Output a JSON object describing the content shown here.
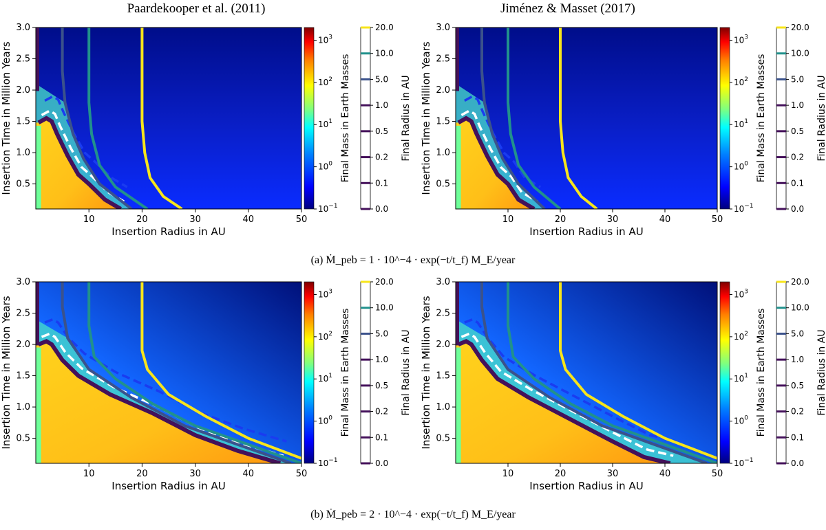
{
  "figure": {
    "column_titles": [
      "Paardekooper et al. (2011)",
      "Jiménez & Masset (2017)"
    ],
    "captions": [
      {
        "label": "(a)",
        "text": "Ṁ_peb = 1 · 10^−4 · exp(−t/t_f) M_E/year"
      },
      {
        "label": "(b)",
        "text": "Ṁ_peb = 2 · 10^−4 · exp(−t/t_f) M_E/year"
      }
    ],
    "colors": {
      "contour_20": "#f7e51b",
      "contour_10": "#21918c",
      "contour_5": "#3b528b",
      "contour_low": "#44115a",
      "dashed_blue": "#1a3cf0",
      "dashed_white": "#ffffff"
    }
  },
  "chart_data": [
    {
      "type": "heatmap",
      "panel": "(a) left",
      "model": "Paardekooper et al. (2011)",
      "xlabel": "Insertion Radius in AU",
      "ylabel": "Insertion Time in Million Years",
      "xlim": [
        0,
        50
      ],
      "ylim": [
        0.1,
        3.0
      ],
      "xticks": [
        10,
        20,
        30,
        40,
        50
      ],
      "yticks": [
        0.5,
        1.0,
        1.5,
        2.0,
        2.5,
        3.0
      ],
      "colorbar_mass": {
        "label": "Final Mass in Earth Masses",
        "scale": "log",
        "range": [
          0.1,
          2000
        ],
        "ticks": [
          "10^-1",
          "10^0",
          "10^1",
          "10^2",
          "10^3"
        ]
      },
      "colorbar_radius": {
        "label": "Final Radius in AU",
        "ticks": [
          "0.0",
          "0.1",
          "0.2",
          "0.5",
          "1.0",
          "5.0",
          "10.0",
          "20.0"
        ]
      },
      "contours": [
        {
          "level": 20,
          "points": [
            [
              20,
              3.0
            ],
            [
              20,
              1.5
            ],
            [
              20.5,
              1.0
            ],
            [
              21.5,
              0.6
            ],
            [
              24,
              0.3
            ],
            [
              27.5,
              0.1
            ]
          ]
        },
        {
          "level": 10,
          "points": [
            [
              10,
              3.0
            ],
            [
              10,
              1.8
            ],
            [
              10.5,
              1.3
            ],
            [
              12,
              0.8
            ],
            [
              15,
              0.45
            ],
            [
              21,
              0.1
            ]
          ]
        },
        {
          "level": 5,
          "points": [
            [
              5,
              3.0
            ],
            [
              5,
              2.3
            ],
            [
              5.5,
              1.8
            ],
            [
              7,
              1.3
            ],
            [
              9,
              0.9
            ],
            [
              12,
              0.5
            ],
            [
              18,
              0.1
            ]
          ]
        },
        {
          "level": 1,
          "points": [
            [
              0.5,
              1.48
            ],
            [
              2,
              1.55
            ],
            [
              3,
              1.5
            ],
            [
              4,
              1.3
            ],
            [
              6,
              0.95
            ],
            [
              8,
              0.65
            ],
            [
              10,
              0.5
            ],
            [
              13,
              0.25
            ],
            [
              16,
              0.1
            ]
          ]
        }
      ]
    },
    {
      "type": "heatmap",
      "panel": "(a) right",
      "model": "Jiménez & Masset (2017)",
      "xlabel": "Insertion Radius in AU",
      "ylabel": "Insertion Time in Million Years",
      "xlim": [
        0,
        50
      ],
      "ylim": [
        0.1,
        3.0
      ],
      "xticks": [
        10,
        20,
        30,
        40,
        50
      ],
      "yticks": [
        0.5,
        1.0,
        1.5,
        2.0,
        2.5,
        3.0
      ],
      "colorbar_mass": {
        "label": "Final Mass in Earth Masses",
        "scale": "log",
        "range": [
          0.1,
          2000
        ],
        "ticks": [
          "10^-1",
          "10^0",
          "10^1",
          "10^2",
          "10^3"
        ]
      },
      "colorbar_radius": {
        "label": "Final Radius in AU",
        "ticks": [
          "0.0",
          "0.1",
          "0.2",
          "0.5",
          "1.0",
          "5.0",
          "10.0",
          "20.0"
        ]
      },
      "contours": [
        {
          "level": 20,
          "points": [
            [
              20,
              3.0
            ],
            [
              20,
              1.5
            ],
            [
              20.5,
              1.0
            ],
            [
              21.5,
              0.6
            ],
            [
              24,
              0.3
            ],
            [
              27,
              0.1
            ]
          ]
        },
        {
          "level": 10,
          "points": [
            [
              10,
              3.0
            ],
            [
              10,
              1.8
            ],
            [
              10.5,
              1.3
            ],
            [
              12,
              0.8
            ],
            [
              15,
              0.45
            ],
            [
              20,
              0.1
            ]
          ]
        },
        {
          "level": 5,
          "points": [
            [
              5,
              3.0
            ],
            [
              5,
              2.3
            ],
            [
              5.5,
              1.8
            ],
            [
              7,
              1.3
            ],
            [
              9,
              0.9
            ],
            [
              12,
              0.5
            ],
            [
              17,
              0.1
            ]
          ]
        },
        {
          "level": 1,
          "points": [
            [
              0.5,
              1.48
            ],
            [
              2,
              1.55
            ],
            [
              3,
              1.5
            ],
            [
              4,
              1.3
            ],
            [
              6,
              0.95
            ],
            [
              8,
              0.65
            ],
            [
              10,
              0.5
            ],
            [
              12,
              0.25
            ],
            [
              15,
              0.1
            ]
          ]
        }
      ]
    },
    {
      "type": "heatmap",
      "panel": "(b) left",
      "model": "Paardekooper et al. (2011)",
      "xlabel": "Insertion Radius in AU",
      "ylabel": "Insertion Time in Million Years",
      "xlim": [
        0,
        50
      ],
      "ylim": [
        0.1,
        3.0
      ],
      "xticks": [
        10,
        20,
        30,
        40,
        50
      ],
      "yticks": [
        0.5,
        1.0,
        1.5,
        2.0,
        2.5,
        3.0
      ],
      "colorbar_mass": {
        "label": "Final Mass in Earth Masses",
        "scale": "log",
        "range": [
          0.1,
          2000
        ],
        "ticks": [
          "10^-1",
          "10^0",
          "10^1",
          "10^2",
          "10^3"
        ]
      },
      "colorbar_radius": {
        "label": "Final Radius in AU",
        "ticks": [
          "0.0",
          "0.1",
          "0.2",
          "0.5",
          "1.0",
          "5.0",
          "10.0",
          "20.0"
        ]
      },
      "contours": [
        {
          "level": 20,
          "points": [
            [
              20,
              3.0
            ],
            [
              20,
              1.9
            ],
            [
              21,
              1.6
            ],
            [
              25,
              1.2
            ],
            [
              32,
              0.85
            ],
            [
              40,
              0.5
            ],
            [
              50,
              0.18
            ]
          ]
        },
        {
          "level": 10,
          "points": [
            [
              10,
              3.0
            ],
            [
              10,
              2.3
            ],
            [
              11,
              1.8
            ],
            [
              15,
              1.45
            ],
            [
              22,
              1.05
            ],
            [
              30,
              0.7
            ],
            [
              40,
              0.4
            ],
            [
              50,
              0.1
            ]
          ]
        },
        {
          "level": 5,
          "points": [
            [
              5,
              3.0
            ],
            [
              5,
              2.6
            ],
            [
              6,
              2.1
            ],
            [
              10,
              1.6
            ],
            [
              18,
              1.15
            ],
            [
              28,
              0.7
            ],
            [
              38,
              0.4
            ],
            [
              48,
              0.1
            ]
          ]
        },
        {
          "level": 1,
          "points": [
            [
              0.5,
              2.0
            ],
            [
              2,
              2.05
            ],
            [
              3,
              2.0
            ],
            [
              5,
              1.75
            ],
            [
              8,
              1.5
            ],
            [
              14,
              1.2
            ],
            [
              22,
              0.9
            ],
            [
              30,
              0.55
            ],
            [
              38,
              0.3
            ],
            [
              46,
              0.1
            ]
          ]
        }
      ]
    },
    {
      "type": "heatmap",
      "panel": "(b) right",
      "model": "Jiménez & Masset (2017)",
      "xlabel": "Insertion Radius in AU",
      "ylabel": "Insertion Time in Million Years",
      "xlim": [
        0,
        50
      ],
      "ylim": [
        0.1,
        3.0
      ],
      "xticks": [
        10,
        20,
        30,
        40,
        50
      ],
      "yticks": [
        0.5,
        1.0,
        1.5,
        2.0,
        2.5,
        3.0
      ],
      "colorbar_mass": {
        "label": "Final Mass in Earth Masses",
        "scale": "log",
        "range": [
          0.1,
          2000
        ],
        "ticks": [
          "10^-1",
          "10^0",
          "10^1",
          "10^2",
          "10^3"
        ]
      },
      "colorbar_radius": {
        "label": "Final Radius in AU",
        "ticks": [
          "0.0",
          "0.1",
          "0.2",
          "0.5",
          "1.0",
          "5.0",
          "10.0",
          "20.0"
        ]
      },
      "contours": [
        {
          "level": 20,
          "points": [
            [
              20,
              3.0
            ],
            [
              20,
              1.9
            ],
            [
              21,
              1.6
            ],
            [
              25,
              1.2
            ],
            [
              32,
              0.85
            ],
            [
              40,
              0.5
            ],
            [
              50,
              0.18
            ]
          ]
        },
        {
          "level": 10,
          "points": [
            [
              10,
              3.0
            ],
            [
              10,
              2.3
            ],
            [
              11,
              1.8
            ],
            [
              15,
              1.45
            ],
            [
              22,
              1.05
            ],
            [
              30,
              0.7
            ],
            [
              40,
              0.4
            ],
            [
              50,
              0.1
            ]
          ]
        },
        {
          "level": 5,
          "points": [
            [
              5,
              3.0
            ],
            [
              5,
              2.6
            ],
            [
              6,
              2.1
            ],
            [
              10,
              1.6
            ],
            [
              18,
              1.15
            ],
            [
              28,
              0.7
            ],
            [
              38,
              0.4
            ],
            [
              48,
              0.1
            ]
          ]
        },
        {
          "level": 1,
          "points": [
            [
              0.5,
              2.0
            ],
            [
              2,
              2.05
            ],
            [
              3,
              2.0
            ],
            [
              5,
              1.75
            ],
            [
              8,
              1.45
            ],
            [
              14,
              1.15
            ],
            [
              22,
              0.8
            ],
            [
              30,
              0.45
            ],
            [
              36,
              0.2
            ],
            [
              41,
              0.1
            ]
          ]
        }
      ]
    }
  ]
}
